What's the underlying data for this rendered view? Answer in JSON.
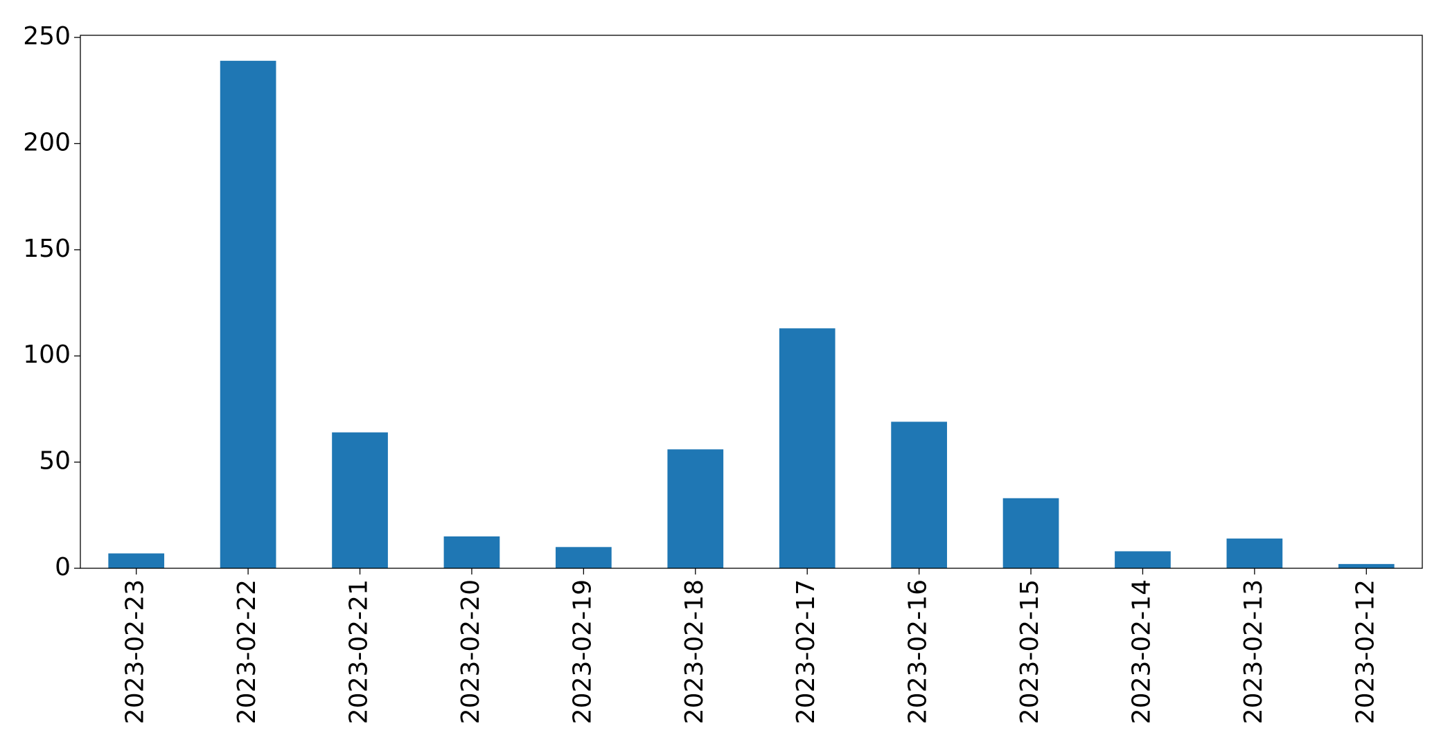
{
  "chart_data": {
    "type": "bar",
    "categories": [
      "2023-02-23",
      "2023-02-22",
      "2023-02-21",
      "2023-02-20",
      "2023-02-19",
      "2023-02-18",
      "2023-02-17",
      "2023-02-16",
      "2023-02-15",
      "2023-02-14",
      "2023-02-13",
      "2023-02-12"
    ],
    "values": [
      7,
      239,
      64,
      15,
      10,
      56,
      113,
      69,
      33,
      8,
      14,
      2
    ],
    "color": "#1f77b4",
    "ylim": [
      0,
      251
    ],
    "yticks": [
      0,
      50,
      100,
      150,
      200,
      250
    ],
    "grid": false
  }
}
